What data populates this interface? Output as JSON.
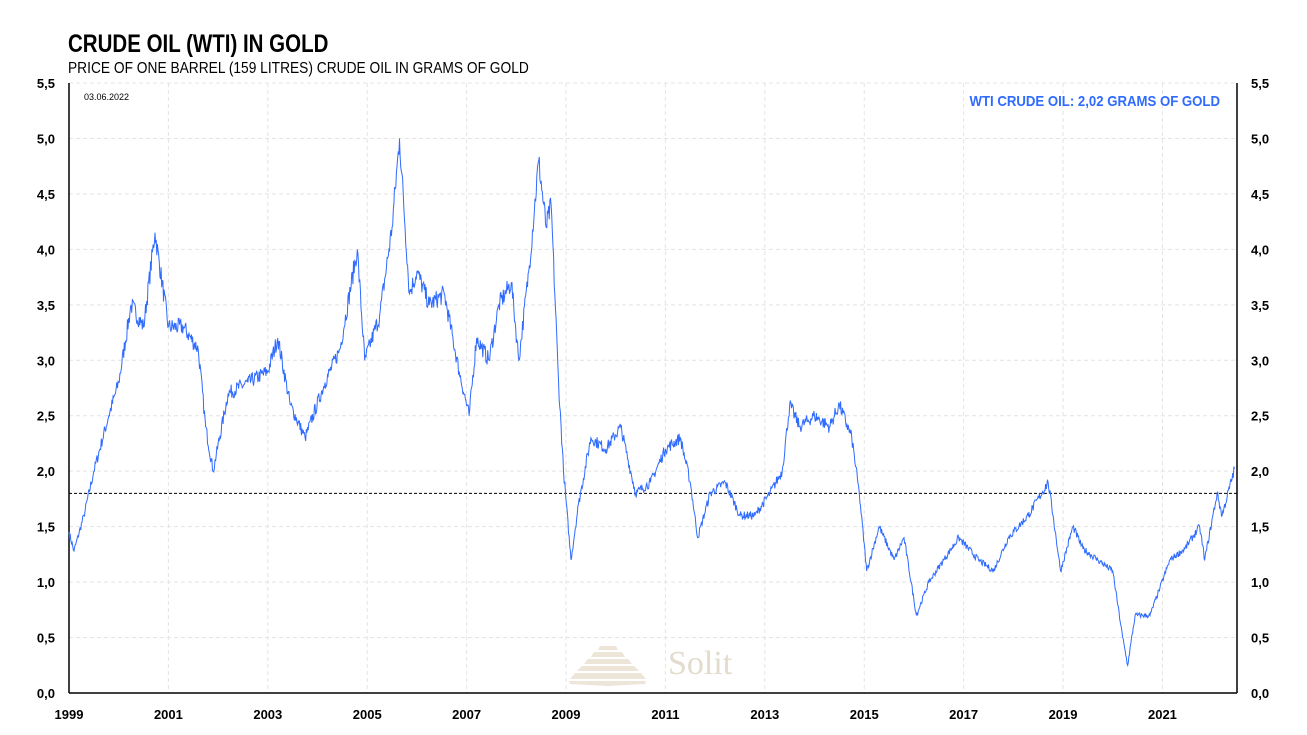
{
  "chart_data": {
    "type": "line",
    "title": "CRUDE OIL (WTI) IN GOLD",
    "subtitle": "PRICE OF ONE BARREL (159 LITRES) CRUDE OIL IN GRAMS OF GOLD",
    "date_label": "03.06.2022",
    "annotation": "WTI CRUDE OIL: 2,02 GRAMS OF  GOLD",
    "watermark": "Solit",
    "xlabel": "",
    "ylabel": "",
    "xlim": [
      1999,
      2022.5
    ],
    "ylim": [
      0,
      5.5
    ],
    "x_ticks": [
      "1999",
      "2001",
      "2003",
      "2005",
      "2007",
      "2009",
      "2011",
      "2013",
      "2015",
      "2017",
      "2019",
      "2021"
    ],
    "y_ticks": [
      "0,0",
      "0,5",
      "1,0",
      "1,5",
      "2,0",
      "2,5",
      "3,0",
      "3,5",
      "4,0",
      "4,5",
      "5,0",
      "5,5"
    ],
    "reference_line": 1.8,
    "grid": true,
    "series": [
      {
        "name": "WTI crude oil in grams of gold",
        "color": "#2f6bff",
        "x": [
          1999.0,
          1999.1,
          1999.3,
          1999.5,
          1999.8,
          2000.0,
          2000.25,
          2000.5,
          2000.73,
          2001.0,
          2001.3,
          2001.6,
          2001.75,
          2001.9,
          2002.2,
          2002.6,
          2003.0,
          2003.2,
          2003.45,
          2003.75,
          2004.15,
          2004.45,
          2004.8,
          2004.95,
          2005.25,
          2005.5,
          2005.65,
          2005.85,
          2006.0,
          2006.25,
          2006.55,
          2006.85,
          2007.05,
          2007.2,
          2007.45,
          2007.65,
          2007.9,
          2008.05,
          2008.25,
          2008.45,
          2008.6,
          2008.7,
          2008.85,
          2008.95,
          2009.1,
          2009.25,
          2009.5,
          2009.8,
          2010.1,
          2010.4,
          2010.7,
          2011.0,
          2011.3,
          2011.5,
          2011.65,
          2011.9,
          2012.2,
          2012.5,
          2012.8,
          2013.1,
          2013.35,
          2013.5,
          2013.7,
          2014.0,
          2014.3,
          2014.5,
          2014.75,
          2014.9,
          2015.05,
          2015.3,
          2015.6,
          2015.8,
          2016.05,
          2016.3,
          2016.6,
          2016.9,
          2017.3,
          2017.6,
          2017.9,
          2018.3,
          2018.7,
          2018.8,
          2018.95,
          2019.2,
          2019.4,
          2019.7,
          2020.0,
          2020.2,
          2020.3,
          2020.45,
          2020.75,
          2020.95,
          2021.15,
          2021.45,
          2021.75,
          2021.85,
          2022.1,
          2022.2,
          2022.45
        ],
        "y": [
          1.45,
          1.28,
          1.6,
          2.0,
          2.5,
          2.8,
          3.5,
          3.3,
          4.15,
          3.3,
          3.3,
          3.1,
          2.4,
          2.0,
          2.7,
          2.8,
          2.9,
          3.2,
          2.6,
          2.3,
          2.8,
          3.1,
          4.0,
          3.0,
          3.4,
          4.2,
          5.0,
          3.6,
          3.8,
          3.5,
          3.6,
          2.9,
          2.5,
          3.2,
          3.0,
          3.5,
          3.7,
          3.0,
          3.8,
          4.8,
          4.2,
          4.4,
          2.8,
          2.0,
          1.2,
          1.7,
          2.3,
          2.2,
          2.4,
          1.8,
          1.9,
          2.2,
          2.3,
          1.9,
          1.4,
          1.8,
          1.9,
          1.6,
          1.6,
          1.8,
          2.0,
          2.6,
          2.4,
          2.5,
          2.4,
          2.6,
          2.3,
          1.8,
          1.1,
          1.5,
          1.2,
          1.4,
          0.7,
          1.0,
          1.2,
          1.4,
          1.2,
          1.1,
          1.4,
          1.6,
          1.9,
          1.6,
          1.1,
          1.5,
          1.3,
          1.2,
          1.1,
          0.5,
          0.25,
          0.7,
          0.7,
          0.95,
          1.2,
          1.3,
          1.5,
          1.2,
          1.8,
          1.6,
          2.02
        ]
      }
    ]
  }
}
